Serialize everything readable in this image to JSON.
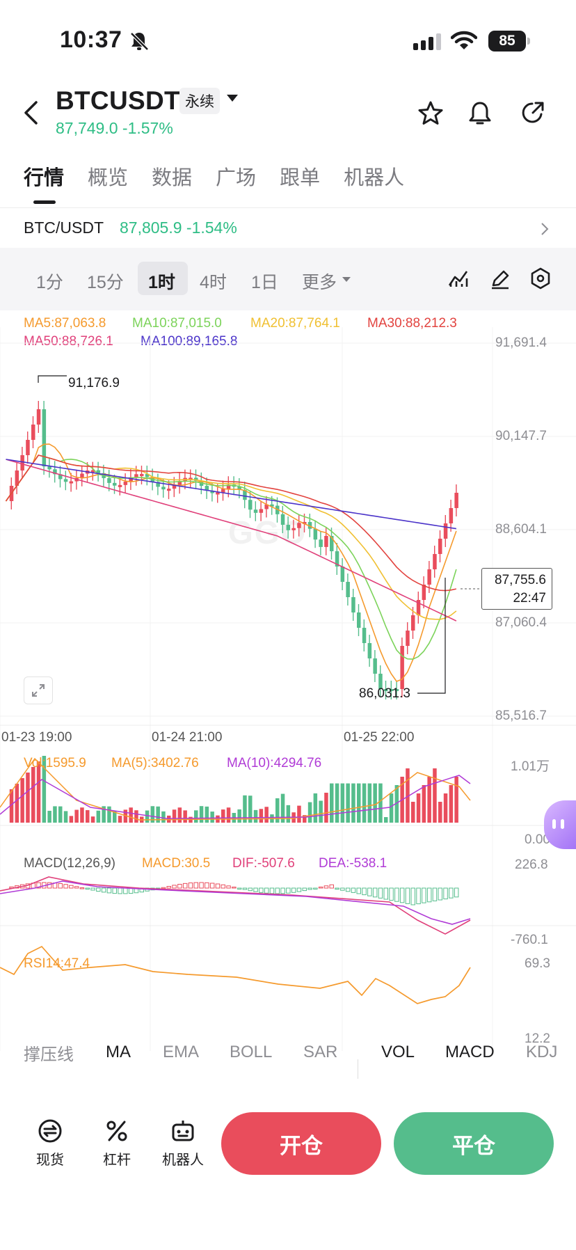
{
  "status_bar": {
    "time": "10:37",
    "battery": "85"
  },
  "header": {
    "symbol": "BTCUSDT",
    "badge": "永续",
    "price_change": "87,749.0 -1.57%"
  },
  "tabs": [
    "行情",
    "概览",
    "数据",
    "广场",
    "跟单",
    "机器人"
  ],
  "pair_row": {
    "name": "BTC/USDT",
    "price": "87,805.9 -1.54%"
  },
  "intervals": [
    "1分",
    "15分",
    "1时",
    "4时",
    "1日",
    "更多"
  ],
  "legends": {
    "ma5": "MA5:87,063.8",
    "ma10": "MA10:87,015.0",
    "ma20": "MA20:87,764.1",
    "ma30": "MA30:88,212.3",
    "ma50": "MA50:88,726.1",
    "ma100": "MA100:89,165.8",
    "vol": "Vol:1595.9",
    "vol_ma5": "MA(5):3402.76",
    "vol_ma10": "MA(10):4294.76",
    "macd_title": "MACD(12,26,9)",
    "macd_val": "MACD:30.5",
    "dif": "DIF:-507.6",
    "dea": "DEA:-538.1",
    "rsi": "RSI14:47.4"
  },
  "price_axis": [
    "91,691.4",
    "90,147.7",
    "88,604.1",
    "87,060.4",
    "85,516.7"
  ],
  "time_axis": [
    "01-23 19:00",
    "01-24 21:00",
    "01-25 22:00"
  ],
  "current_price": {
    "price": "87,755.6",
    "countdown": "22:47"
  },
  "high_label": "91,176.9",
  "low_label": "86,031.3",
  "volume_axis": {
    "max": "1.01万",
    "min": "0.00"
  },
  "macd_axis": {
    "max": "226.8",
    "min": "-760.1"
  },
  "rsi_axis": {
    "max": "69.3",
    "min": "12.2"
  },
  "indicator_bar": [
    "撑压线",
    "MA",
    "EMA",
    "BOLL",
    "SAR",
    "VOL",
    "MACD",
    "KDJ"
  ],
  "bottom_bar": {
    "spot": "现货",
    "leverage": "杠杆",
    "robot": "机器人",
    "open": "开仓",
    "close": "平仓"
  },
  "colors": {
    "up": "#e94d5c",
    "down": "#55bd8c",
    "accent_green": "#2ebd85"
  }
}
